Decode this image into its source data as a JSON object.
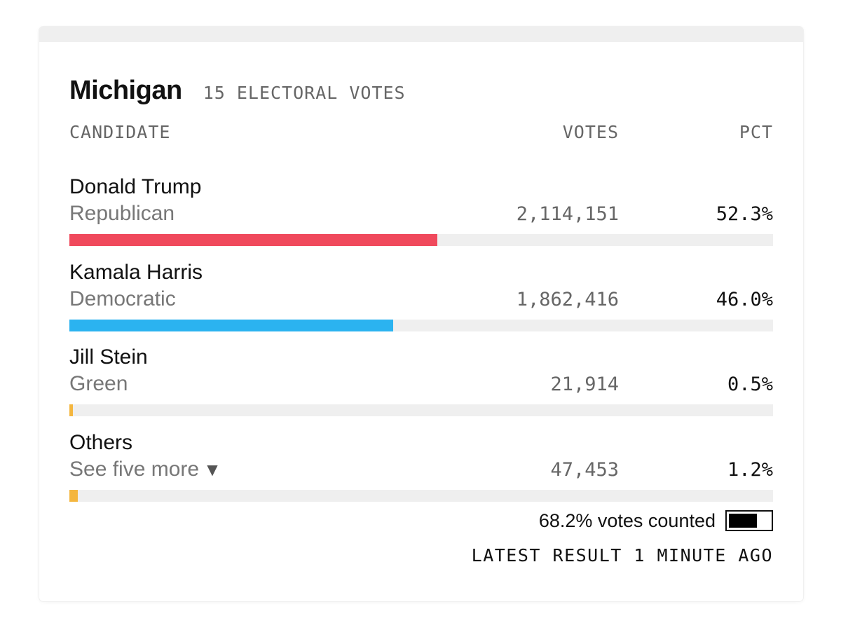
{
  "state": {
    "name": "Michigan",
    "electoral_votes_label": "15 ELECTORAL VOTES"
  },
  "columns": {
    "candidate": "CANDIDATE",
    "votes": "VOTES",
    "pct": "PCT"
  },
  "candidates": [
    {
      "name": "Donald Trump",
      "party": "Republican",
      "votes": "2,114,151",
      "pct": "52.3%",
      "share": 0.523,
      "color": "#f0495c"
    },
    {
      "name": "Kamala Harris",
      "party": "Democratic",
      "votes": "1,862,416",
      "pct": "46.0%",
      "share": 0.46,
      "color": "#2bb3f0"
    },
    {
      "name": "Jill Stein",
      "party": "Green",
      "votes": "21,914",
      "pct": "0.5%",
      "share": 0.005,
      "color": "#f4b63f"
    },
    {
      "name": "Others",
      "party": "See five more",
      "party_icon": "triangle-down-icon",
      "votes": "47,453",
      "pct": "1.2%",
      "share": 0.012,
      "color": "#f4b63f"
    }
  ],
  "counted": {
    "text": "68.2% votes counted",
    "fraction": 0.682
  },
  "latest": "LATEST RESULT 1 MINUTE AGO"
}
